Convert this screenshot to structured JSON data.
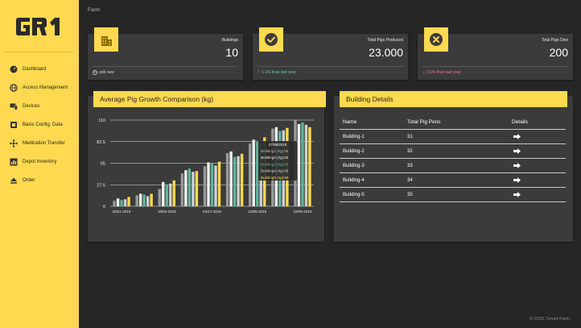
{
  "sidebar": {
    "logo_text": "GR1",
    "items": [
      {
        "label": "Dashboard",
        "icon": "speedometer-icon"
      },
      {
        "label": "Access Management",
        "icon": "globe-icon"
      },
      {
        "label": "Devices",
        "icon": "devices-icon"
      },
      {
        "label": "Basic Config. Data",
        "icon": "config-icon"
      },
      {
        "label": "Medication Transfer",
        "icon": "transfer-icon"
      },
      {
        "label": "Depot Inventory",
        "icon": "inventory-icon"
      },
      {
        "label": "Order",
        "icon": "eject-icon"
      }
    ]
  },
  "breadcrumb": "Farm",
  "stats": [
    {
      "label": "Buildings",
      "value": "10",
      "footer": "add new",
      "icon": "building-icon"
    },
    {
      "label": "Total Pigs Produced",
      "value": "23.000",
      "footer": "1.1% than last year",
      "trend": "up",
      "icon": "check-circle-icon"
    },
    {
      "label": "Total Pigs Dies",
      "value": "200",
      "footer": "0.6% than last year",
      "trend": "down",
      "icon": "x-circle-icon"
    }
  ],
  "chart_panel": {
    "title": "Average Pig Growth Comparison (kg)"
  },
  "chart_data": {
    "type": "bar",
    "title": "Average Pig Growth Comparison (kg)",
    "yticks": [
      0,
      27.5,
      55,
      82.5,
      110
    ],
    "ylim": [
      0,
      110
    ],
    "xtick_labels": [
      "28/01-2019",
      "18/03-2019",
      "04/17-2019",
      "13/05-2019",
      "10/09-2019"
    ],
    "series": [
      {
        "name": "Building1",
        "color": "#9a9a9a",
        "values": [
          7,
          14,
          22,
          42,
          51,
          68,
          80,
          99,
          110
        ]
      },
      {
        "name": "Building2",
        "color": "#f2f2f2",
        "values": [
          10,
          16,
          31,
          46,
          56,
          70,
          85,
          101,
          105
        ]
      },
      {
        "name": "Building3",
        "color": "#5fb49a",
        "values": [
          8,
          15,
          28,
          48,
          55,
          63,
          82,
          96,
          107
        ]
      },
      {
        "name": "Building4",
        "color": "#cfcfcf",
        "values": [
          9,
          13,
          29,
          44,
          52,
          64,
          81,
          97,
          104
        ]
      },
      {
        "name": "Building5",
        "color": "#ffd94f",
        "values": [
          12,
          16,
          33,
          45,
          57,
          67,
          88,
          100,
          101
        ]
      }
    ],
    "tooltip": {
      "title": "27/08/2019",
      "lines": [
        {
          "text": "Building1 (kg):55",
          "color": "#bdbdbd"
        },
        {
          "text": "Building2 (kg):92",
          "color": "#f2f2f2"
        },
        {
          "text": "Building3 (kg):66",
          "color": "#5fb49a"
        },
        {
          "text": "Building4 (kg):88",
          "color": "#d6d6d6"
        },
        {
          "text": "Building5 (kg):99",
          "color": "#ffd94f"
        }
      ]
    }
  },
  "building_panel": {
    "title": "Building Details",
    "headers": [
      "Name",
      "Total Pig Pens",
      "Details"
    ],
    "rows": [
      {
        "name": "Building-1",
        "pens": "31"
      },
      {
        "name": "Building-2",
        "pens": "32"
      },
      {
        "name": "Building-3",
        "pens": "33"
      },
      {
        "name": "Building-4",
        "pens": "34"
      },
      {
        "name": "Building-5",
        "pens": "35"
      }
    ]
  },
  "footer": "© 2019, Smart Farm"
}
